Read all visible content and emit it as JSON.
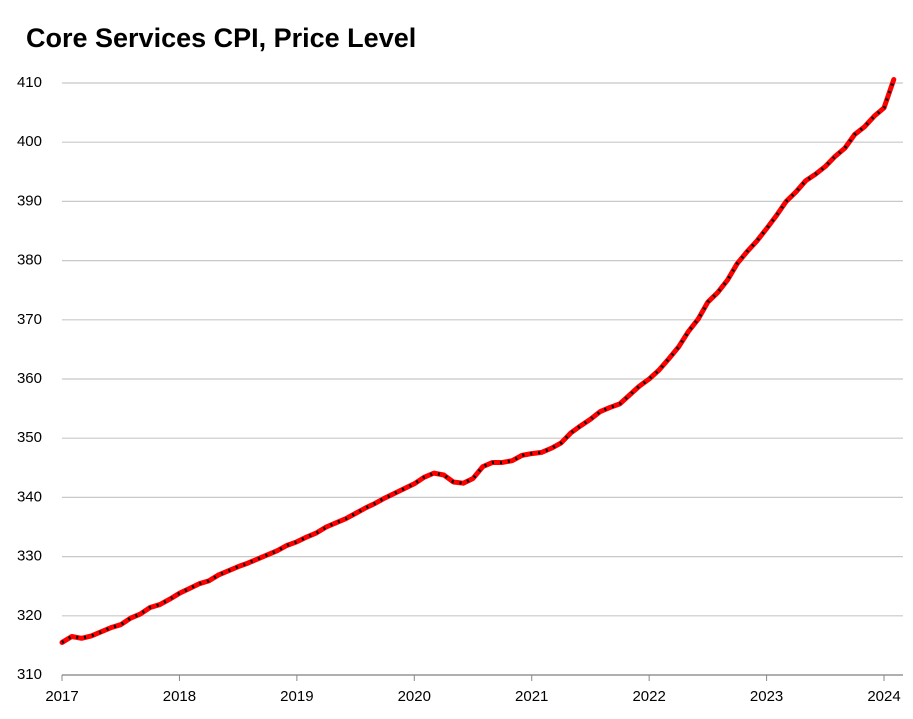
{
  "chart_data": {
    "type": "line",
    "title": "Core Services CPI, Price Level",
    "categories": [
      "2017",
      null,
      null,
      null,
      null,
      null,
      null,
      null,
      null,
      null,
      null,
      null,
      "2018",
      null,
      null,
      null,
      null,
      null,
      null,
      null,
      null,
      null,
      null,
      null,
      "2019",
      null,
      null,
      null,
      null,
      null,
      null,
      null,
      null,
      null,
      null,
      null,
      "2020",
      null,
      null,
      null,
      null,
      null,
      null,
      null,
      null,
      null,
      null,
      null,
      "2021",
      null,
      null,
      null,
      null,
      null,
      null,
      null,
      null,
      null,
      null,
      null,
      "2022",
      null,
      null,
      null,
      null,
      null,
      null,
      null,
      null,
      null,
      null,
      null,
      "2023",
      null,
      null,
      null,
      null,
      null,
      null,
      null,
      null,
      null,
      null,
      null,
      "2024",
      null
    ],
    "series": [
      {
        "color": "#ff0000",
        "values": [
          315.5,
          316.5,
          316.2,
          316.6,
          317.3,
          318.0,
          318.5,
          319.6,
          320.3,
          321.4,
          321.9,
          322.8,
          323.8,
          324.6,
          325.4,
          325.9,
          326.9,
          327.6,
          328.3,
          328.9,
          329.6,
          330.3,
          331.0,
          331.9,
          332.5,
          333.3,
          334.0,
          335.0,
          335.7,
          336.4,
          337.3,
          338.2,
          339.0,
          339.9,
          340.7,
          341.5,
          342.3,
          343.4,
          344.1,
          343.8,
          342.6,
          342.4,
          343.2,
          345.2,
          345.9,
          345.9,
          346.2,
          347.1,
          347.4,
          347.6,
          348.3,
          349.2,
          350.9,
          352.1,
          353.2,
          354.5,
          355.2,
          355.8,
          357.3,
          358.8,
          360.0,
          361.5,
          363.4,
          365.4,
          368.0,
          370.1,
          373.0,
          374.6,
          376.7,
          379.5,
          381.5,
          383.3,
          385.4,
          387.6,
          390.0,
          391.6,
          393.5,
          394.6,
          395.9,
          397.6,
          399.0,
          401.3,
          402.6,
          404.4,
          405.8,
          410.6
        ]
      }
    ],
    "ylim": [
      310,
      410
    ],
    "yticks": [
      310,
      320,
      330,
      340,
      350,
      360,
      370,
      380,
      390,
      400,
      410
    ],
    "grid": true
  }
}
